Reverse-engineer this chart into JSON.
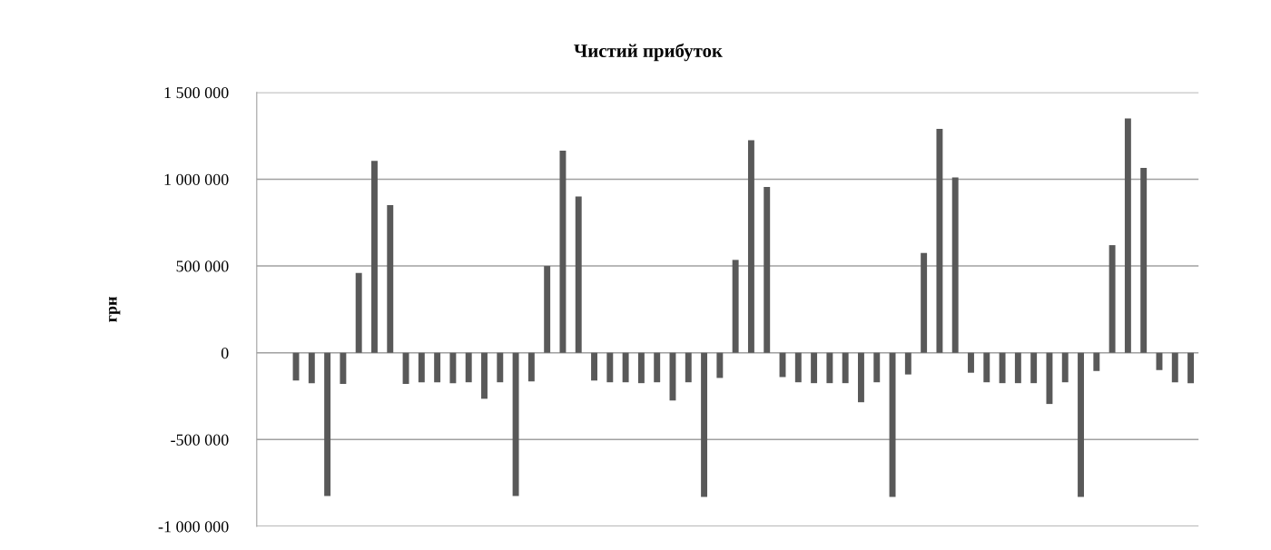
{
  "chart_data": {
    "type": "bar",
    "title": "Чистий прибуток",
    "ylabel": "грн",
    "categories": [
      null,
      null,
      null,
      null,
      null,
      null,
      null,
      null,
      null,
      null,
      null,
      null,
      null,
      null,
      null,
      null,
      null,
      null,
      null,
      null,
      null,
      null,
      null,
      null,
      null,
      null,
      null,
      null,
      null,
      null,
      null,
      null,
      null,
      null,
      null,
      null,
      null,
      null,
      null,
      null,
      null,
      null,
      null,
      null,
      null,
      null,
      null,
      null,
      null,
      null,
      null,
      null,
      null,
      null,
      null,
      null,
      null,
      null,
      null,
      null
    ],
    "values": [
      null,
      null,
      -160000,
      -175000,
      -825000,
      -180000,
      460000,
      1105000,
      850000,
      -180000,
      -170000,
      -170000,
      -175000,
      -170000,
      -265000,
      -170000,
      -825000,
      -165000,
      500000,
      1165000,
      900000,
      -160000,
      -170000,
      -170000,
      -175000,
      -170000,
      -275000,
      -170000,
      -830000,
      -145000,
      535000,
      1225000,
      955000,
      -140000,
      -170000,
      -175000,
      -175000,
      -175000,
      -285000,
      -170000,
      -830000,
      -125000,
      575000,
      1290000,
      1010000,
      -115000,
      -170000,
      -175000,
      -175000,
      -175000,
      -295000,
      -170000,
      -830000,
      -105000,
      620000,
      1350000,
      1065000,
      -100000,
      -170000,
      -175000
    ],
    "color": "#595959",
    "ylim": [
      -1000000,
      1500000
    ],
    "yticks": [
      {
        "value": -1000000,
        "label": "-1 000 000"
      },
      {
        "value": -500000,
        "label": "-500 000"
      },
      0,
      {
        "value": 500000,
        "label": "500 000"
      },
      {
        "value": 1000000,
        "label": "1 000 000"
      },
      {
        "value": 1500000,
        "label": "1 500 000"
      }
    ],
    "grid": "y",
    "legend": false,
    "tick_labels": "y"
  }
}
